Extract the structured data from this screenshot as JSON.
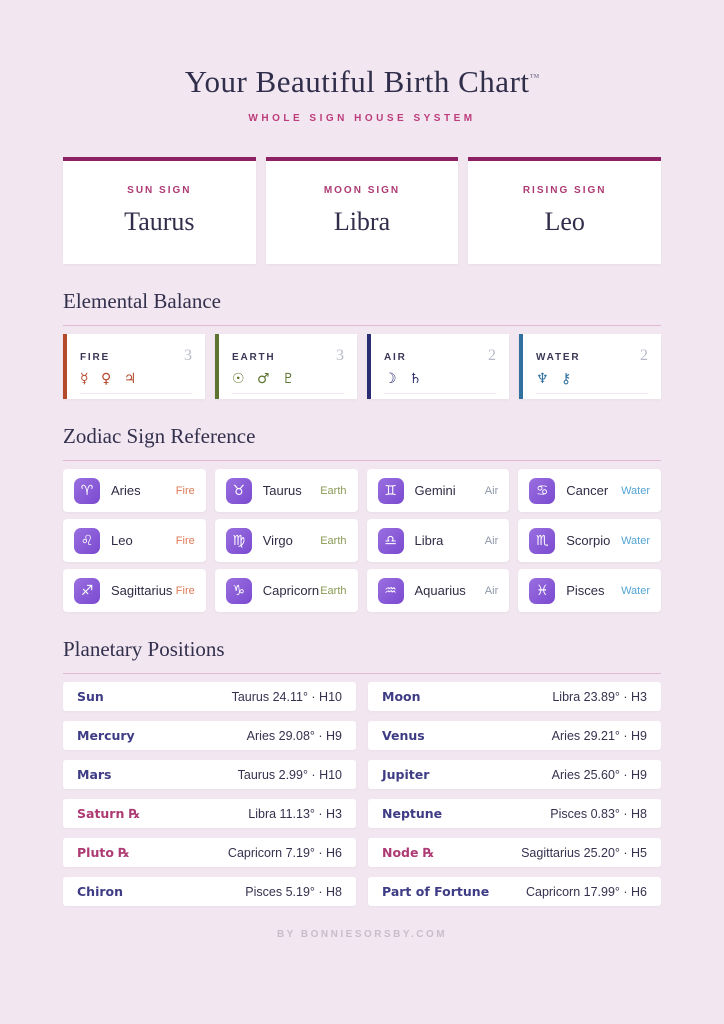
{
  "page": {
    "title": "Your Beautiful Birth Chart",
    "trademark": "™",
    "subtitle": "WHOLE SIGN HOUSE SYSTEM",
    "footer": "BY BONNIESORSBY.COM"
  },
  "colors": {
    "accent_bar": "#8e2163",
    "card_label": "#ad3a73",
    "planet_name": "#3e3c85",
    "retrograde": "#ad3a73",
    "fire": "#b5492c",
    "earth": "#5d7331",
    "air": "#2b2d72",
    "water": "#31719f",
    "fire_label": "#de7a57",
    "earth_label": "#8a9a55",
    "air_label": "#8e98a9",
    "water_label": "#54a5d4"
  },
  "big_three": [
    {
      "label": "SUN SIGN",
      "value": "Taurus"
    },
    {
      "label": "MOON SIGN",
      "value": "Libra"
    },
    {
      "label": "RISING SIGN",
      "value": "Leo"
    }
  ],
  "section_titles": {
    "elemental": "Elemental Balance",
    "zodiac": "Zodiac Sign Reference",
    "planets": "Planetary Positions"
  },
  "elements": [
    {
      "name": "FIRE",
      "count": "3",
      "glyphs": "☿ ♀ ♃",
      "color_key": "fire"
    },
    {
      "name": "EARTH",
      "count": "3",
      "glyphs": "☉ ♂ ♇",
      "color_key": "earth"
    },
    {
      "name": "AIR",
      "count": "2",
      "glyphs": "☽ ♄",
      "color_key": "air"
    },
    {
      "name": "WATER",
      "count": "2",
      "glyphs": "♆ ⚷",
      "color_key": "water"
    }
  ],
  "zodiac_signs": [
    {
      "glyph": "♈",
      "name": "Aries",
      "element": "Fire"
    },
    {
      "glyph": "♉",
      "name": "Taurus",
      "element": "Earth"
    },
    {
      "glyph": "♊",
      "name": "Gemini",
      "element": "Air"
    },
    {
      "glyph": "♋",
      "name": "Cancer",
      "element": "Water"
    },
    {
      "glyph": "♌",
      "name": "Leo",
      "element": "Fire"
    },
    {
      "glyph": "♍",
      "name": "Virgo",
      "element": "Earth"
    },
    {
      "glyph": "♎",
      "name": "Libra",
      "element": "Air"
    },
    {
      "glyph": "♏",
      "name": "Scorpio",
      "element": "Water"
    },
    {
      "glyph": "♐",
      "name": "Sagittarius",
      "element": "Fire"
    },
    {
      "glyph": "♑",
      "name": "Capricorn",
      "element": "Earth"
    },
    {
      "glyph": "♒",
      "name": "Aquarius",
      "element": "Air"
    },
    {
      "glyph": "♓",
      "name": "Pisces",
      "element": "Water"
    }
  ],
  "planets": [
    {
      "name": "Sun",
      "position": "Taurus 24.11° · H10",
      "retrograde": false
    },
    {
      "name": "Moon",
      "position": "Libra 23.89° · H3",
      "retrograde": false
    },
    {
      "name": "Mercury",
      "position": "Aries 29.08° · H9",
      "retrograde": false
    },
    {
      "name": "Venus",
      "position": "Aries 29.21° · H9",
      "retrograde": false
    },
    {
      "name": "Mars",
      "position": "Taurus 2.99° · H10",
      "retrograde": false
    },
    {
      "name": "Jupiter",
      "position": "Aries 25.60° · H9",
      "retrograde": false
    },
    {
      "name": "Saturn ℞",
      "position": "Libra 11.13° · H3",
      "retrograde": true
    },
    {
      "name": "Neptune",
      "position": "Pisces 0.83° · H8",
      "retrograde": false
    },
    {
      "name": "Pluto ℞",
      "position": "Capricorn 7.19° · H6",
      "retrograde": true
    },
    {
      "name": "Node ℞",
      "position": "Sagittarius 25.20° · H5",
      "retrograde": true
    },
    {
      "name": "Chiron",
      "position": "Pisces 5.19° · H8",
      "retrograde": false
    },
    {
      "name": "Part of Fortune",
      "position": "Capricorn 17.99° · H6",
      "retrograde": false
    }
  ]
}
